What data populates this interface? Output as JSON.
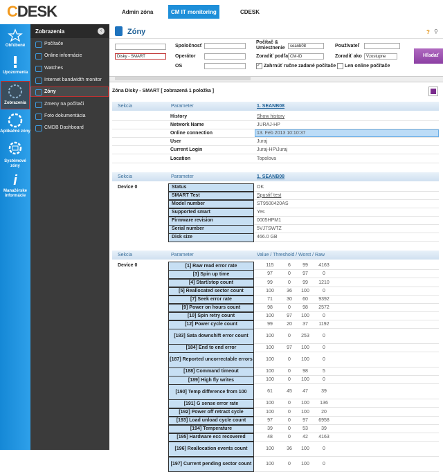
{
  "header": {
    "logo": "CDESK",
    "nav": [
      "Admin zóna",
      "CM IT monitoring",
      "CDESK"
    ]
  },
  "sidebar": {
    "icons": [
      "Obľúbené",
      "Upozornenia",
      "Zobrazenia",
      "Aplikačné zóny",
      "Systémové zóny",
      "Manažérske informácie"
    ],
    "title": "Zobrazenia",
    "items": [
      "Počítače",
      "Online informácie",
      "Watches",
      "Internet bandwidth monitor",
      "Zóny",
      "Zmeny na počítači",
      "Foto dokumentácia",
      "CMDB Dashboard"
    ]
  },
  "page": {
    "title": "Zóny",
    "help": "?"
  },
  "filter": {
    "zone_select": "Disky - SMART",
    "company": "Spoločnosť",
    "operator": "Operátor",
    "os": "OS",
    "computer_label": "Počítač & Umiestnenie",
    "computer_value": "seanb08",
    "user": "Používateľ",
    "sort_by": "Zoradiť podľa",
    "sort_by_value": "CM-ID",
    "sort_as": "Zoradiť ako",
    "sort_as_value": "Vzostupne",
    "include_manual": "Zahrnúť ručne zadané počítače",
    "online_only": "Len online počítače",
    "search": "Hľadať"
  },
  "summary": "Zóna Disky - SMART [ zobrazená 1 položka ]",
  "tables": [
    {
      "headers": [
        "Sekcia",
        "Parameter",
        "1. SEANB08"
      ],
      "rows": [
        {
          "param": "History",
          "value": "Show history"
        },
        {
          "param": "Network Name",
          "value": "JURAJ-HP"
        },
        {
          "param": "Online connection",
          "value": "13. Feb 2013 10:10:37"
        },
        {
          "param": "User",
          "value": "Juraj"
        },
        {
          "param": "Current Login",
          "value": "Juraj-HP\\Juraj"
        },
        {
          "param": "Location",
          "value": "Topolova"
        }
      ]
    },
    {
      "headers": [
        "Sekcia",
        "Parameter",
        "1. SEANB08"
      ],
      "section": "Device 0",
      "rows": [
        {
          "param": "Status",
          "value": "OK"
        },
        {
          "param": "SMART Test",
          "value": "Spustiť test"
        },
        {
          "param": "Model number",
          "value": "ST9500420AS"
        },
        {
          "param": "Supported smart",
          "value": "Yes"
        },
        {
          "param": "Firmware revision",
          "value": "0005HPM1"
        },
        {
          "param": "Serial number",
          "value": "5VJ7SWTZ"
        },
        {
          "param": "Disk size",
          "value": "466.0 GB"
        }
      ]
    },
    {
      "headers": [
        "Sekcia",
        "Parameter",
        "Value / Threshold / Worst / Raw"
      ],
      "section": "Device 0",
      "rows": [
        {
          "param": "[1] Raw read error rate",
          "values": [
            115,
            6,
            99,
            4163
          ]
        },
        {
          "param": "[3] Spin up time",
          "values": [
            97,
            0,
            97,
            0
          ]
        },
        {
          "param": "[4] Start/stop count",
          "values": [
            99,
            0,
            99,
            1210
          ]
        },
        {
          "param": "[5] Reallocated sector count",
          "values": [
            100,
            36,
            100,
            0
          ]
        },
        {
          "param": "[7] Seek error rate",
          "values": [
            71,
            30,
            60,
            9392
          ]
        },
        {
          "param": "[9] Power on hours count",
          "values": [
            98,
            0,
            98,
            2572
          ]
        },
        {
          "param": "[10] Spin retry count",
          "values": [
            100,
            97,
            100,
            0
          ]
        },
        {
          "param": "[12] Power cycle count",
          "values": [
            99,
            20,
            37,
            1192
          ]
        },
        {
          "param": "[183] Sata downshift error count",
          "values": [
            100,
            0,
            253,
            0
          ]
        },
        {
          "param": "[184] End to end error",
          "values": [
            100,
            97,
            100,
            0
          ]
        },
        {
          "param": "[187] Reported uncorrectable errors",
          "values": [
            100,
            0,
            100,
            0
          ]
        },
        {
          "param": "[188] Command timeout",
          "values": [
            100,
            0,
            98,
            5
          ]
        },
        {
          "param": "[189] High fly writes",
          "values": [
            100,
            0,
            100,
            0
          ]
        },
        {
          "param": "[190] Temp difference from 100",
          "values": [
            61,
            45,
            47,
            39
          ]
        },
        {
          "param": "[191] G sense error rate",
          "values": [
            100,
            0,
            100,
            136
          ]
        },
        {
          "param": "[192] Power off retract cycle",
          "values": [
            100,
            0,
            100,
            20
          ]
        },
        {
          "param": "[193] Load unload cycle count",
          "values": [
            97,
            0,
            97,
            6958
          ]
        },
        {
          "param": "[194] Temperature",
          "values": [
            39,
            0,
            53,
            39
          ]
        },
        {
          "param": "[195] Hardware ecc recovered",
          "values": [
            48,
            0,
            42,
            4163
          ]
        },
        {
          "param": "[196] Reallocation events count",
          "values": [
            100,
            36,
            100,
            0
          ]
        },
        {
          "param": "[197] Current pending sector count",
          "values": [
            100,
            0,
            100,
            0
          ]
        }
      ]
    }
  ]
}
